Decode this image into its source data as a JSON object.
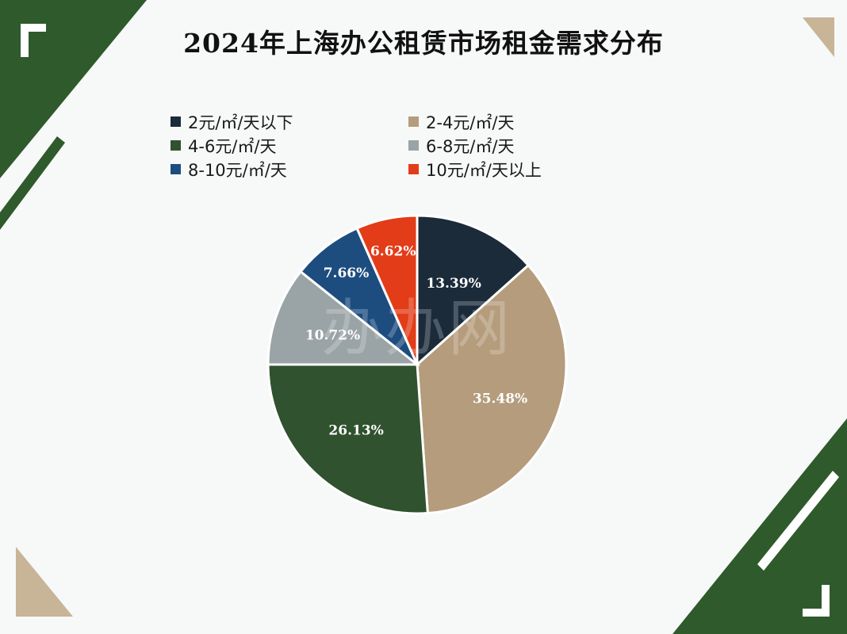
{
  "chart_data": {
    "type": "pie",
    "title": "2024年上海办公租赁市场租金需求分布",
    "categories": [
      "2元/㎡/天以下",
      "2-4元/㎡/天",
      "4-6元/㎡/天",
      "6-8元/㎡/天",
      "8-10元/㎡/天",
      "10元/㎡/天以上"
    ],
    "values": [
      13.39,
      35.48,
      26.13,
      10.72,
      7.66,
      6.62
    ],
    "data_labels": [
      "13.39%",
      "35.48%",
      "26.13%",
      "10.72%",
      "7.66%",
      "6.62%"
    ],
    "colors": [
      "#1b2b3a",
      "#b49c7c",
      "#30522f",
      "#9aa3a6",
      "#1d4d7f",
      "#e23c18"
    ],
    "legend_position": "top"
  },
  "watermark": "办办网",
  "theme": {
    "green": "#2f5a2c",
    "tan": "#c8b497",
    "background": "#f7f8f8"
  }
}
